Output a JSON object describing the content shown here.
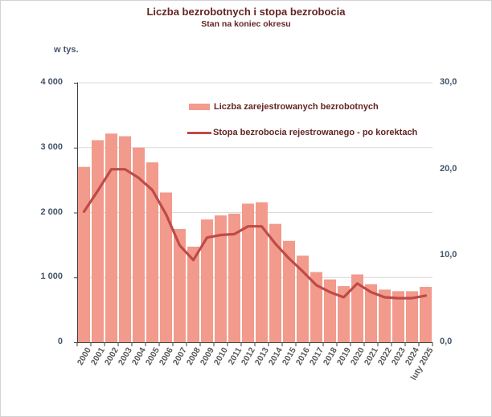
{
  "chart_data": {
    "type": "bar",
    "title": "Liczba bezrobotnych i stopa bezrobocia",
    "subtitle": "Stan na koniec okresu",
    "categories": [
      "2000",
      "2001",
      "2002",
      "2003",
      "2004",
      "2005",
      "2006",
      "2007",
      "2008",
      "2009",
      "2010",
      "2011",
      "2012",
      "2013",
      "2014",
      "2015",
      "2016",
      "2017",
      "2018",
      "2019",
      "2020",
      "2021",
      "2022",
      "2023",
      "2024",
      "luty 2025"
    ],
    "series": [
      {
        "name": "Liczba zarejestrowanych bezrobotnych",
        "type": "bar",
        "axis": "left",
        "unit": "tys.",
        "values": [
          2703,
          3115,
          3217,
          3176,
          3000,
          2773,
          2309,
          1747,
          1474,
          1893,
          1955,
          1983,
          2137,
          2158,
          1825,
          1563,
          1335,
          1082,
          969,
          866,
          1046,
          895,
          812,
          788,
          787,
          854
        ]
      },
      {
        "name": "Stopa bezrobocia rejestrowanego - po korektach",
        "type": "line",
        "axis": "right",
        "unit": "%",
        "values": [
          15.1,
          17.5,
          20.0,
          20.0,
          19.0,
          17.6,
          14.8,
          11.2,
          9.5,
          12.1,
          12.4,
          12.5,
          13.4,
          13.4,
          11.4,
          9.7,
          8.2,
          6.6,
          5.8,
          5.2,
          6.8,
          5.8,
          5.2,
          5.1,
          5.1,
          5.4
        ]
      }
    ],
    "left_axis": {
      "label": "w tys.",
      "range": [
        0,
        4000
      ],
      "tick_values": [
        0,
        1000,
        2000,
        3000,
        4000
      ],
      "tick_labels": [
        "0",
        "1 000",
        "2 000",
        "3 000",
        "4 000"
      ]
    },
    "right_axis": {
      "range": [
        0,
        30
      ],
      "tick_values": [
        0,
        10,
        20,
        30
      ],
      "tick_labels": [
        "0,0",
        "10,0",
        "20,0",
        "30,0"
      ]
    },
    "grid": true,
    "legend_position": "top-center-inside"
  },
  "colors": {
    "bar_fill": "#F29A8C",
    "line_stroke": "#BE4B48",
    "heading_text": "#632423",
    "tick_text": "#44546A",
    "year_text": "#595959",
    "gridline": "#D9D9D9",
    "axis_line": "#404040"
  }
}
